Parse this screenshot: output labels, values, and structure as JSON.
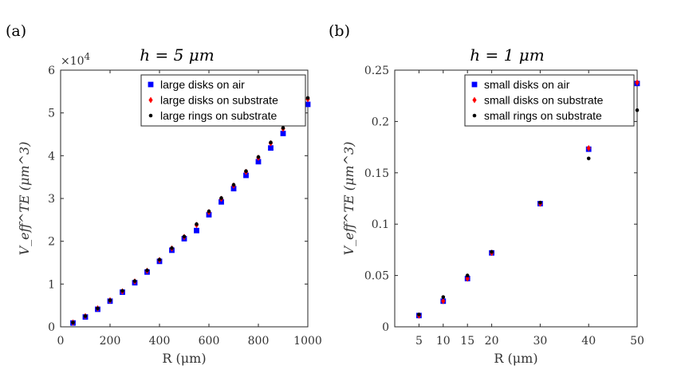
{
  "chart_data": [
    {
      "type": "scatter",
      "panel_label": "(a)",
      "title": "h = 5 μm",
      "xlabel": "R (μm)",
      "ylabel": "V_eff^TE (μm^3)",
      "y_multiplier_label": "×10",
      "y_multiplier_exponent": "4",
      "xlim": [
        0,
        1000
      ],
      "ylim": [
        0,
        6
      ],
      "xticks": [
        0,
        200,
        400,
        600,
        800,
        1000
      ],
      "yticks": [
        0,
        1,
        2,
        3,
        4,
        5,
        6
      ],
      "x_scale": "linear",
      "legend_position": "top-right",
      "series": [
        {
          "name": "large disks on air",
          "color": "#0000ff",
          "marker": "square",
          "points": [
            [
              50,
              0.09
            ],
            [
              100,
              0.23
            ],
            [
              150,
              0.41
            ],
            [
              200,
              0.6
            ],
            [
              250,
              0.81
            ],
            [
              300,
              1.03
            ],
            [
              350,
              1.28
            ],
            [
              400,
              1.53
            ],
            [
              450,
              1.79
            ],
            [
              500,
              2.06
            ],
            [
              550,
              2.25
            ],
            [
              600,
              2.62
            ],
            [
              650,
              2.92
            ],
            [
              700,
              3.23
            ],
            [
              750,
              3.54
            ],
            [
              800,
              3.86
            ],
            [
              850,
              4.18
            ],
            [
              900,
              4.52
            ],
            [
              1000,
              5.2
            ]
          ]
        },
        {
          "name": "large disks on substrate",
          "color": "#ff0000",
          "marker": "diamond",
          "points": [
            [
              50,
              0.1
            ],
            [
              100,
              0.25
            ],
            [
              150,
              0.43
            ],
            [
              200,
              0.62
            ],
            [
              250,
              0.83
            ],
            [
              300,
              1.06
            ],
            [
              350,
              1.31
            ],
            [
              400,
              1.56
            ],
            [
              450,
              1.83
            ],
            [
              500,
              2.1
            ],
            [
              550,
              2.38
            ],
            [
              600,
              2.68
            ],
            [
              650,
              2.99
            ],
            [
              700,
              3.3
            ],
            [
              750,
              3.62
            ],
            [
              800,
              3.95
            ],
            [
              850,
              4.29
            ],
            [
              900,
              4.63
            ],
            [
              1000,
              5.32
            ]
          ]
        },
        {
          "name": "large rings on substrate",
          "color": "#000000",
          "marker": "circle",
          "points": [
            [
              50,
              0.1
            ],
            [
              100,
              0.25
            ],
            [
              150,
              0.43
            ],
            [
              200,
              0.62
            ],
            [
              250,
              0.84
            ],
            [
              300,
              1.07
            ],
            [
              350,
              1.32
            ],
            [
              400,
              1.57
            ],
            [
              450,
              1.84
            ],
            [
              500,
              2.11
            ],
            [
              550,
              2.4
            ],
            [
              600,
              2.7
            ],
            [
              650,
              3.01
            ],
            [
              700,
              3.32
            ],
            [
              750,
              3.64
            ],
            [
              800,
              3.97
            ],
            [
              850,
              4.31
            ],
            [
              900,
              4.65
            ],
            [
              1000,
              5.35
            ]
          ]
        }
      ]
    },
    {
      "type": "scatter",
      "panel_label": "(b)",
      "title": "h = 1 μm",
      "xlabel": "R (μm)",
      "ylabel": "V_eff^TE (μm^3)",
      "xlim": [
        0,
        50
      ],
      "ylim": [
        0,
        0.25
      ],
      "xticks": [
        5,
        10,
        15,
        20,
        30,
        40,
        50
      ],
      "yticks": [
        0,
        0.05,
        0.1,
        0.15,
        0.2,
        0.25
      ],
      "ytick_labels": [
        "0",
        "0.05",
        "0.1",
        "0.15",
        "0.2",
        "0.25"
      ],
      "x_scale": "categorical",
      "legend_position": "top-right",
      "series": [
        {
          "name": "small disks on air",
          "color": "#0000ff",
          "marker": "square",
          "points": [
            [
              5,
              0.011
            ],
            [
              10,
              0.025
            ],
            [
              15,
              0.047
            ],
            [
              20,
              0.072
            ],
            [
              30,
              0.12
            ],
            [
              40,
              0.173
            ],
            [
              50,
              0.237
            ]
          ]
        },
        {
          "name": "small disks on substrate",
          "color": "#ff0000",
          "marker": "diamond",
          "points": [
            [
              5,
              0.011
            ],
            [
              10,
              0.025
            ],
            [
              15,
              0.047
            ],
            [
              20,
              0.072
            ],
            [
              30,
              0.12
            ],
            [
              40,
              0.174
            ],
            [
              50,
              0.238
            ]
          ]
        },
        {
          "name": "small rings on substrate",
          "color": "#000000",
          "marker": "circle",
          "points": [
            [
              5,
              0.012
            ],
            [
              10,
              0.029
            ],
            [
              15,
              0.05
            ],
            [
              20,
              0.073
            ],
            [
              30,
              0.121
            ],
            [
              40,
              0.164
            ],
            [
              50,
              0.211
            ]
          ]
        }
      ]
    }
  ]
}
